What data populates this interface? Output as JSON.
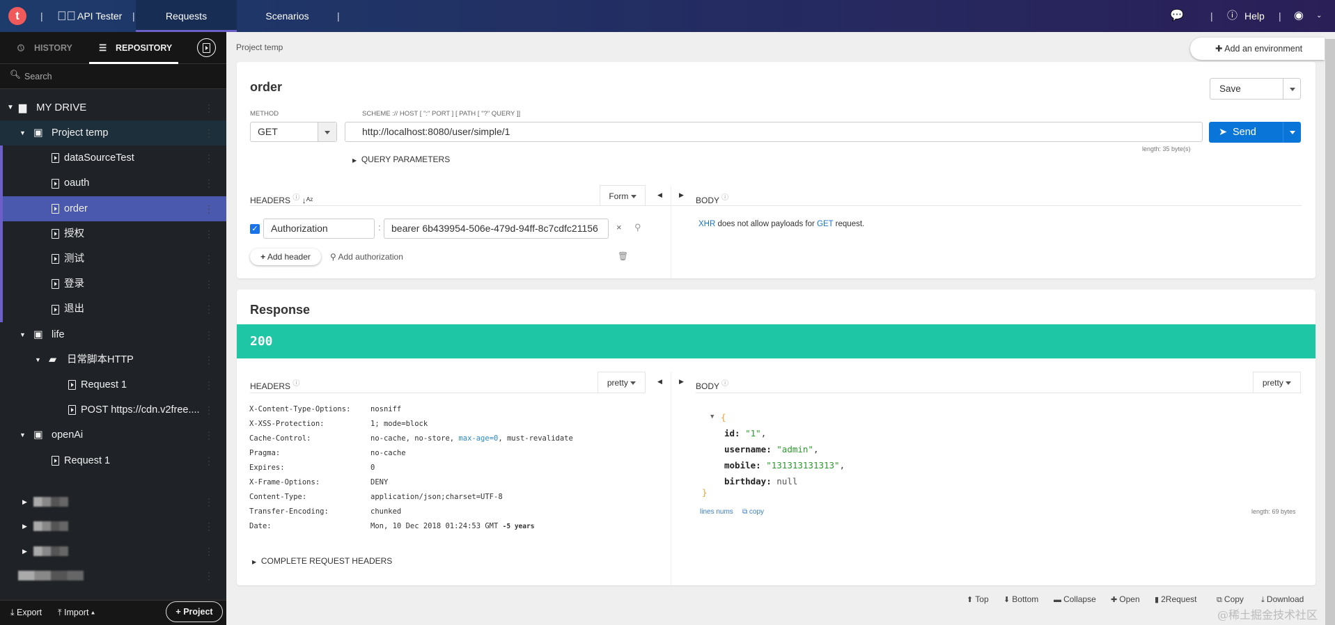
{
  "topbar": {
    "app_name": "API Tester",
    "tabs": [
      "Requests",
      "Scenarios"
    ],
    "help": "Help"
  },
  "sidebar": {
    "tabs": {
      "history": "HISTORY",
      "repository": "REPOSITORY"
    },
    "search_placeholder": "Search",
    "drive": "MY DRIVE",
    "tree": [
      {
        "label": "Project temp",
        "type": "project",
        "level": 1
      },
      {
        "label": "dataSourceTest",
        "type": "request",
        "level": 2
      },
      {
        "label": "oauth",
        "type": "request",
        "level": 2
      },
      {
        "label": "order",
        "type": "request",
        "level": 2,
        "selected": true
      },
      {
        "label": "授权",
        "type": "request",
        "level": 2
      },
      {
        "label": "测试",
        "type": "request",
        "level": 2
      },
      {
        "label": "登录",
        "type": "request",
        "level": 2
      },
      {
        "label": "退出",
        "type": "request",
        "level": 2
      },
      {
        "label": "life",
        "type": "project",
        "level": 1
      },
      {
        "label": "日常脚本HTTP",
        "type": "folder",
        "level": 2
      },
      {
        "label": "Request 1",
        "type": "request",
        "level": 3
      },
      {
        "label": "POST https://cdn.v2free....",
        "type": "request",
        "level": 3
      },
      {
        "label": "openAi",
        "type": "project",
        "level": 1
      },
      {
        "label": "Request 1",
        "type": "request",
        "level": 2
      }
    ],
    "footer": {
      "export": "Export",
      "import": "Import",
      "project": "Project"
    }
  },
  "main": {
    "breadcrumb": "Project temp",
    "add_env": "Add an environment",
    "request": {
      "name": "order",
      "save": "Save",
      "method_label": "METHOD",
      "method": "GET",
      "url_label": "SCHEME :// HOST [ \":\" PORT ] [ PATH [ \"?\" QUERY ]]",
      "url": "http://localhost:8080/user/simple/1",
      "length": "length: 35 byte(s)",
      "send": "Send",
      "query_params": "QUERY PARAMETERS",
      "headers_label": "HEADERS",
      "form": "Form",
      "header_name": "Authorization",
      "header_value": "bearer  6b439954-506e-479d-94ff-8c7cdfc21156",
      "add_header": "Add header",
      "add_auth": "Add authorization",
      "body_label": "BODY",
      "body_msg": {
        "a": "XHR",
        "b": " does not allow payloads for ",
        "c": "GET",
        "d": " request."
      }
    },
    "response": {
      "title": "Response",
      "status": "200",
      "status_color": "#1ec6a5",
      "headers_label": "HEADERS",
      "pretty": "pretty",
      "body_label": "BODY",
      "headers": [
        {
          "k": "X-Content-Type-Options:",
          "v": "nosniff"
        },
        {
          "k": "X-XSS-Protection:",
          "v": "1; mode=block"
        },
        {
          "k": "Cache-Control:",
          "v": "no-cache, no-store, ",
          "v2": "max-age=0",
          "v3": ", must-revalidate"
        },
        {
          "k": "Pragma:",
          "v": "no-cache"
        },
        {
          "k": "Expires:",
          "v": "0"
        },
        {
          "k": "X-Frame-Options:",
          "v": "DENY"
        },
        {
          "k": "Content-Type:",
          "v": "application/json;charset=UTF-8"
        },
        {
          "k": "Transfer-Encoding:",
          "v": "chunked"
        },
        {
          "k": "Date:",
          "v": "Mon, 10 Dec 2018 01:24:53 GMT ",
          "v2": "-5 years"
        }
      ],
      "complete_headers": "COMPLETE REQUEST HEADERS",
      "json": {
        "open": "{",
        "close": "}",
        "fields": [
          {
            "k": "id:",
            "v": "\"1\"",
            "sep": ","
          },
          {
            "k": "username:",
            "v": "\"admin\"",
            "sep": ","
          },
          {
            "k": "mobile:",
            "v": "\"131313131313\"",
            "sep": ","
          },
          {
            "k": "birthday:",
            "v": "null",
            "sep": ""
          }
        ]
      },
      "lines_nums": "lines nums",
      "copy": "copy",
      "length": "length: 69 bytes"
    },
    "toolbar": [
      "Top",
      "Bottom",
      "Collapse",
      "Open",
      "2Request",
      "Copy",
      "Download"
    ]
  },
  "watermark": "@稀土掘金技术社区"
}
